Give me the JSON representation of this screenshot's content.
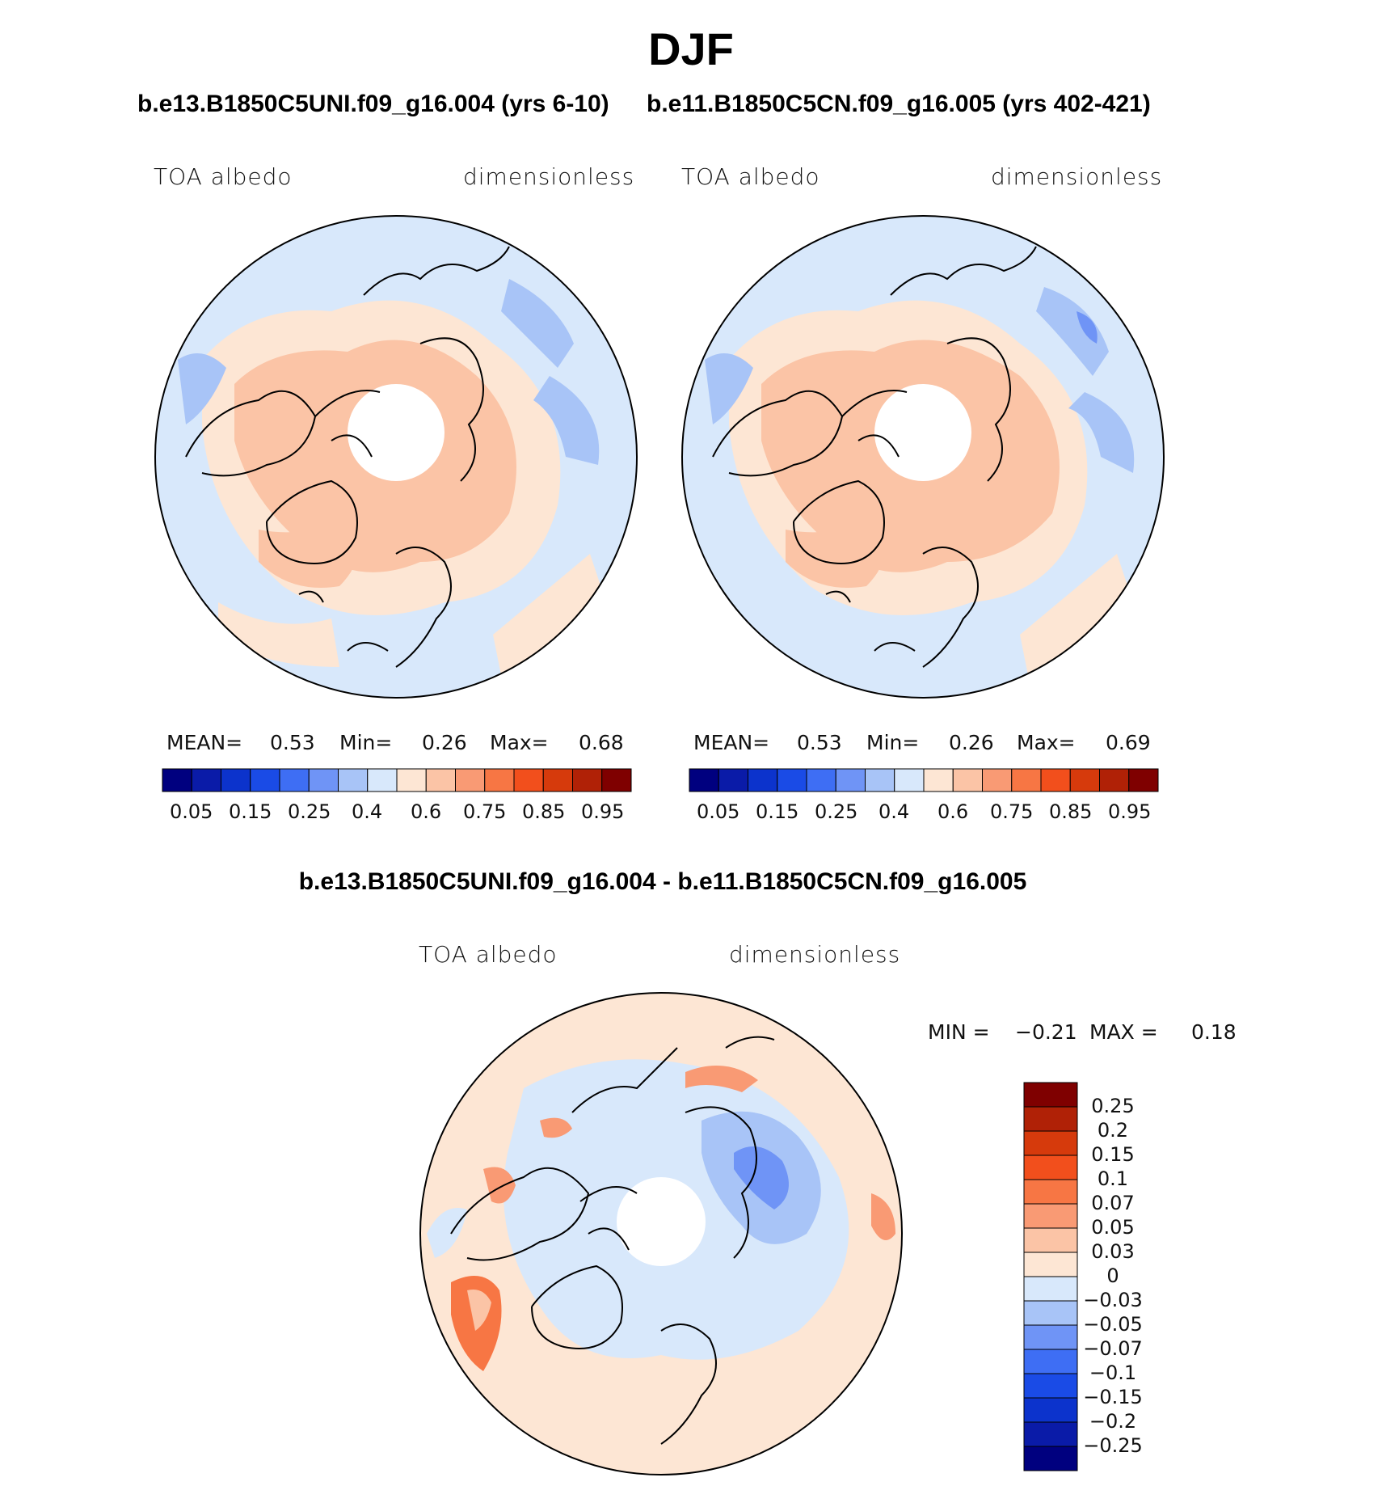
{
  "title": "DJF",
  "panels": [
    {
      "case_title": "b.e13.B1850C5UNI.f09_g16.004 (yrs 6-10)",
      "left_label": "TOA albedo",
      "right_label": "dimensionless",
      "stats": {
        "mean_label": "MEAN=",
        "mean": "0.53",
        "min_label": "Min=",
        "min": "0.26",
        "max_label": "Max=",
        "max": "0.68"
      }
    },
    {
      "case_title": "b.e11.B1850C5CN.f09_g16.005 (yrs 402-421)",
      "left_label": "TOA albedo",
      "right_label": "dimensionless",
      "stats": {
        "mean_label": "MEAN=",
        "mean": "0.53",
        "min_label": "Min=",
        "min": "0.26",
        "max_label": "Max=",
        "max": "0.69"
      }
    }
  ],
  "colorbar_top": {
    "colors": [
      "#00007f",
      "#0a1ba8",
      "#0c33cc",
      "#1a4be6",
      "#3e6ef4",
      "#6f94f6",
      "#a8c4f7",
      "#d8e8fb",
      "#fde6d4",
      "#fbc4a6",
      "#f99a74",
      "#f77644",
      "#f24f1c",
      "#d63a0c",
      "#b02106",
      "#7f0000"
    ],
    "labels": [
      "0.05",
      "0.15",
      "0.25",
      "0.4",
      "0.6",
      "0.75",
      "0.85",
      "0.95"
    ]
  },
  "diff_panel": {
    "case_title": "b.e13.B1850C5UNI.f09_g16.004 - b.e11.B1850C5CN.f09_g16.005",
    "left_label": "TOA albedo",
    "right_label": "dimensionless",
    "stats": {
      "min_label": "MIN =",
      "min": "−0.21",
      "max_label": "MAX =",
      "max": "0.18"
    }
  },
  "colorbar_diff": {
    "colors": [
      "#7f0000",
      "#b02106",
      "#d63a0c",
      "#f24f1c",
      "#f77644",
      "#f99a74",
      "#fbc4a6",
      "#fde6d4",
      "#d8e8fb",
      "#a8c4f7",
      "#6f94f6",
      "#3e6ef4",
      "#1a4be6",
      "#0c33cc",
      "#0a1ba8",
      "#00007f"
    ],
    "labels": [
      "0.25",
      "0.2",
      "0.15",
      "0.1",
      "0.07",
      "0.05",
      "0.03",
      "0",
      "−0.03",
      "−0.05",
      "−0.07",
      "−0.1",
      "−0.15",
      "−0.2",
      "−0.25"
    ]
  }
}
